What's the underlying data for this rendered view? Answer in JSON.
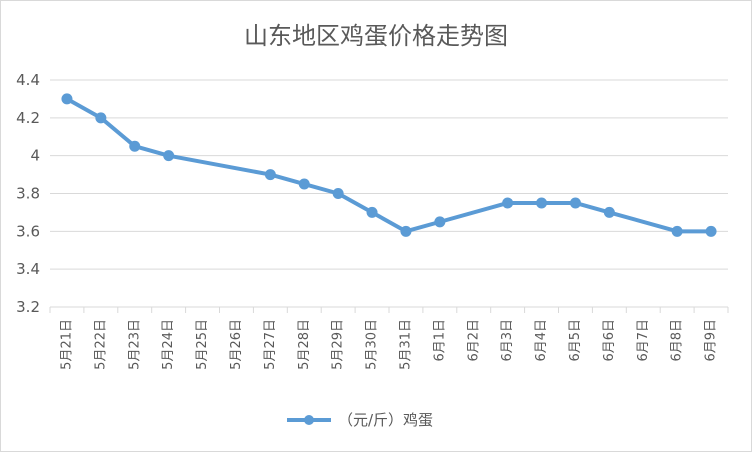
{
  "chart_data": {
    "type": "line",
    "title": "山东地区鸡蛋价格走势图",
    "categories": [
      "5月21日",
      "5月22日",
      "5月23日",
      "5月24日",
      "5月25日",
      "5月26日",
      "5月27日",
      "5月28日",
      "5月29日",
      "5月30日",
      "5月31日",
      "6月1日",
      "6月2日",
      "6月3日",
      "6月4日",
      "6月5日",
      "6月6日",
      "6月7日",
      "6月8日",
      "6月9日"
    ],
    "series": [
      {
        "name": "（元/斤）鸡蛋",
        "color": "#5b9bd5",
        "values": [
          4.3,
          4.2,
          4.05,
          4.0,
          null,
          null,
          3.9,
          3.85,
          3.8,
          3.7,
          3.6,
          3.65,
          null,
          3.75,
          3.75,
          3.75,
          3.7,
          null,
          3.6,
          3.6
        ]
      }
    ],
    "yticks": [
      "3.2",
      "3.4",
      "3.6",
      "3.8",
      "4",
      "4.2",
      "4.4"
    ],
    "ylim": [
      3.2,
      4.4
    ],
    "grid": true,
    "legend_position": "bottom"
  }
}
